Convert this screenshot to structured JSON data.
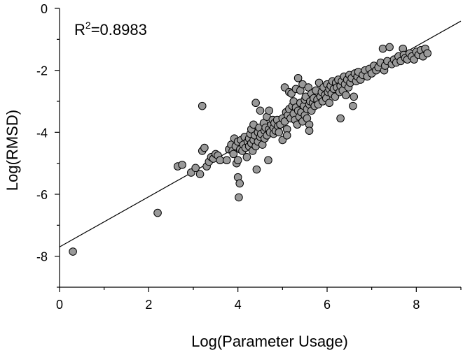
{
  "chart_data": {
    "type": "scatter",
    "title": "",
    "xlabel": "Log(Parameter Usage)",
    "ylabel": "Log(RMSD)",
    "xlim": [
      0,
      9
    ],
    "ylim": [
      -9,
      0
    ],
    "xticks": [
      0,
      2,
      4,
      6,
      8
    ],
    "yticks": [
      -8,
      -6,
      -4,
      -2,
      0
    ],
    "grid": false,
    "legend": "none",
    "annotation": {
      "r_label": "R",
      "r_sup": "2",
      "r_value": "=0.8983",
      "r_squared": 0.8983
    },
    "marker_fill": "#999999",
    "marker_edge": "#000000",
    "fit_line": {
      "slope": 0.81,
      "intercept": -7.7,
      "x_range": [
        0,
        9
      ]
    },
    "points": [
      [
        0.3,
        -7.85
      ],
      [
        2.2,
        -6.6
      ],
      [
        2.65,
        -5.1
      ],
      [
        2.75,
        -5.05
      ],
      [
        2.95,
        -5.3
      ],
      [
        3.05,
        -5.15
      ],
      [
        3.15,
        -5.35
      ],
      [
        3.2,
        -3.15
      ],
      [
        3.2,
        -4.6
      ],
      [
        3.25,
        -4.5
      ],
      [
        3.3,
        -5.1
      ],
      [
        3.35,
        -4.95
      ],
      [
        3.4,
        -4.8
      ],
      [
        3.45,
        -4.85
      ],
      [
        3.5,
        -4.7
      ],
      [
        3.55,
        -4.75
      ],
      [
        3.6,
        -4.9
      ],
      [
        3.75,
        -4.9
      ],
      [
        3.8,
        -4.55
      ],
      [
        3.85,
        -4.4
      ],
      [
        3.88,
        -4.6
      ],
      [
        3.9,
        -4.7
      ],
      [
        3.92,
        -4.2
      ],
      [
        3.95,
        -4.45
      ],
      [
        3.97,
        -5.0
      ],
      [
        4.0,
        -4.3
      ],
      [
        4.0,
        -4.9
      ],
      [
        4.0,
        -5.45
      ],
      [
        4.02,
        -6.1
      ],
      [
        4.04,
        -5.65
      ],
      [
        4.05,
        -4.55
      ],
      [
        4.07,
        -4.25
      ],
      [
        4.1,
        -4.6
      ],
      [
        4.12,
        -4.4
      ],
      [
        4.15,
        -4.15
      ],
      [
        4.17,
        -4.5
      ],
      [
        4.2,
        -4.8
      ],
      [
        4.22,
        -4.3
      ],
      [
        4.25,
        -4.2
      ],
      [
        4.25,
        -4.45
      ],
      [
        4.28,
        -4.05
      ],
      [
        4.3,
        -4.35
      ],
      [
        4.3,
        -3.9
      ],
      [
        4.33,
        -4.6
      ],
      [
        4.35,
        -4.25
      ],
      [
        4.35,
        -3.75
      ],
      [
        4.38,
        -4.1
      ],
      [
        4.4,
        -3.05
      ],
      [
        4.4,
        -4.45
      ],
      [
        4.42,
        -5.2
      ],
      [
        4.45,
        -4.0
      ],
      [
        4.45,
        -4.3
      ],
      [
        4.48,
        -3.85
      ],
      [
        4.5,
        -3.3
      ],
      [
        4.5,
        -4.15
      ],
      [
        4.52,
        -4.05
      ],
      [
        4.55,
        -4.4
      ],
      [
        4.58,
        -3.7
      ],
      [
        4.6,
        -3.95
      ],
      [
        4.6,
        -4.2
      ],
      [
        4.62,
        -3.85
      ],
      [
        4.65,
        -4.1
      ],
      [
        4.65,
        -3.5
      ],
      [
        4.68,
        -4.9
      ],
      [
        4.7,
        -3.3
      ],
      [
        4.7,
        -3.9
      ],
      [
        4.72,
        -4.0
      ],
      [
        4.75,
        -3.75
      ],
      [
        4.78,
        -3.6
      ],
      [
        4.8,
        -4.05
      ],
      [
        4.8,
        -3.85
      ],
      [
        4.82,
        -3.7
      ],
      [
        4.85,
        -3.95
      ],
      [
        4.88,
        -3.6
      ],
      [
        4.9,
        -3.8
      ],
      [
        4.92,
        -4.0
      ],
      [
        4.95,
        -3.75
      ],
      [
        5.0,
        -3.55
      ],
      [
        5.0,
        -4.25
      ],
      [
        5.05,
        -2.55
      ],
      [
        5.05,
        -3.65
      ],
      [
        5.08,
        -3.35
      ],
      [
        5.1,
        -3.9
      ],
      [
        5.1,
        -4.1
      ],
      [
        5.12,
        -3.45
      ],
      [
        5.15,
        -2.7
      ],
      [
        5.15,
        -3.25
      ],
      [
        5.18,
        -3.55
      ],
      [
        5.2,
        -2.75
      ],
      [
        5.22,
        -3.15
      ],
      [
        5.25,
        -3.4
      ],
      [
        5.25,
        -3.0
      ],
      [
        5.28,
        -3.6
      ],
      [
        5.3,
        -3.2
      ],
      [
        5.3,
        -2.6
      ],
      [
        5.33,
        -3.75
      ],
      [
        5.35,
        -3.3
      ],
      [
        5.35,
        -2.25
      ],
      [
        5.38,
        -3.5
      ],
      [
        5.4,
        -2.65
      ],
      [
        5.4,
        -3.05
      ],
      [
        5.42,
        -3.35
      ],
      [
        5.45,
        -2.45
      ],
      [
        5.45,
        -3.65
      ],
      [
        5.48,
        -3.15
      ],
      [
        5.5,
        -2.95
      ],
      [
        5.5,
        -3.45
      ],
      [
        5.52,
        -2.85
      ],
      [
        5.55,
        -3.25
      ],
      [
        5.55,
        -3.55
      ],
      [
        5.58,
        -2.55
      ],
      [
        5.6,
        -3.1
      ],
      [
        5.6,
        -3.75
      ],
      [
        5.6,
        -3.95
      ],
      [
        5.62,
        -3.0
      ],
      [
        5.65,
        -2.75
      ],
      [
        5.65,
        -3.3
      ],
      [
        5.68,
        -3.05
      ],
      [
        5.7,
        -2.9
      ],
      [
        5.72,
        -3.15
      ],
      [
        5.75,
        -2.65
      ],
      [
        5.78,
        -2.95
      ],
      [
        5.8,
        -3.1
      ],
      [
        5.82,
        -2.4
      ],
      [
        5.85,
        -2.85
      ],
      [
        5.88,
        -2.7
      ],
      [
        5.9,
        -3.0
      ],
      [
        5.92,
        -2.55
      ],
      [
        5.95,
        -2.8
      ],
      [
        5.98,
        -2.9
      ],
      [
        6.0,
        -2.45
      ],
      [
        6.02,
        -2.7
      ],
      [
        6.05,
        -2.6
      ],
      [
        6.05,
        -3.05
      ],
      [
        6.08,
        -2.5
      ],
      [
        6.1,
        -2.75
      ],
      [
        6.12,
        -2.35
      ],
      [
        6.15,
        -2.6
      ],
      [
        6.18,
        -2.85
      ],
      [
        6.2,
        -2.4
      ],
      [
        6.22,
        -2.55
      ],
      [
        6.25,
        -2.3
      ],
      [
        6.28,
        -2.7
      ],
      [
        6.3,
        -3.55
      ],
      [
        6.3,
        -2.5
      ],
      [
        6.33,
        -2.35
      ],
      [
        6.35,
        -2.65
      ],
      [
        6.38,
        -2.2
      ],
      [
        6.4,
        -2.45
      ],
      [
        6.42,
        -2.8
      ],
      [
        6.45,
        -2.3
      ],
      [
        6.48,
        -2.55
      ],
      [
        6.5,
        -2.15
      ],
      [
        6.52,
        -2.4
      ],
      [
        6.55,
        -2.25
      ],
      [
        6.58,
        -3.15
      ],
      [
        6.6,
        -2.85
      ],
      [
        6.62,
        -2.1
      ],
      [
        6.65,
        -2.35
      ],
      [
        6.68,
        -2.2
      ],
      [
        6.7,
        -2.05
      ],
      [
        6.75,
        -2.3
      ],
      [
        6.8,
        -2.15
      ],
      [
        6.85,
        -2.0
      ],
      [
        6.9,
        -2.2
      ],
      [
        6.95,
        -1.95
      ],
      [
        7.0,
        -2.1
      ],
      [
        7.05,
        -1.85
      ],
      [
        7.1,
        -2.0
      ],
      [
        7.15,
        -1.9
      ],
      [
        7.2,
        -1.75
      ],
      [
        7.25,
        -1.3
      ],
      [
        7.28,
        -2.0
      ],
      [
        7.3,
        -1.85
      ],
      [
        7.35,
        -1.7
      ],
      [
        7.4,
        -1.25
      ],
      [
        7.45,
        -1.8
      ],
      [
        7.5,
        -1.65
      ],
      [
        7.55,
        -1.75
      ],
      [
        7.6,
        -1.55
      ],
      [
        7.65,
        -1.7
      ],
      [
        7.7,
        -1.3
      ],
      [
        7.72,
        -1.5
      ],
      [
        7.75,
        -1.6
      ],
      [
        7.8,
        -1.65
      ],
      [
        7.85,
        -1.45
      ],
      [
        7.9,
        -1.55
      ],
      [
        7.95,
        -1.65
      ],
      [
        8.0,
        -1.4
      ],
      [
        8.05,
        -1.5
      ],
      [
        8.1,
        -1.35
      ],
      [
        8.15,
        -1.55
      ],
      [
        8.2,
        -1.3
      ],
      [
        8.25,
        -1.45
      ]
    ]
  }
}
